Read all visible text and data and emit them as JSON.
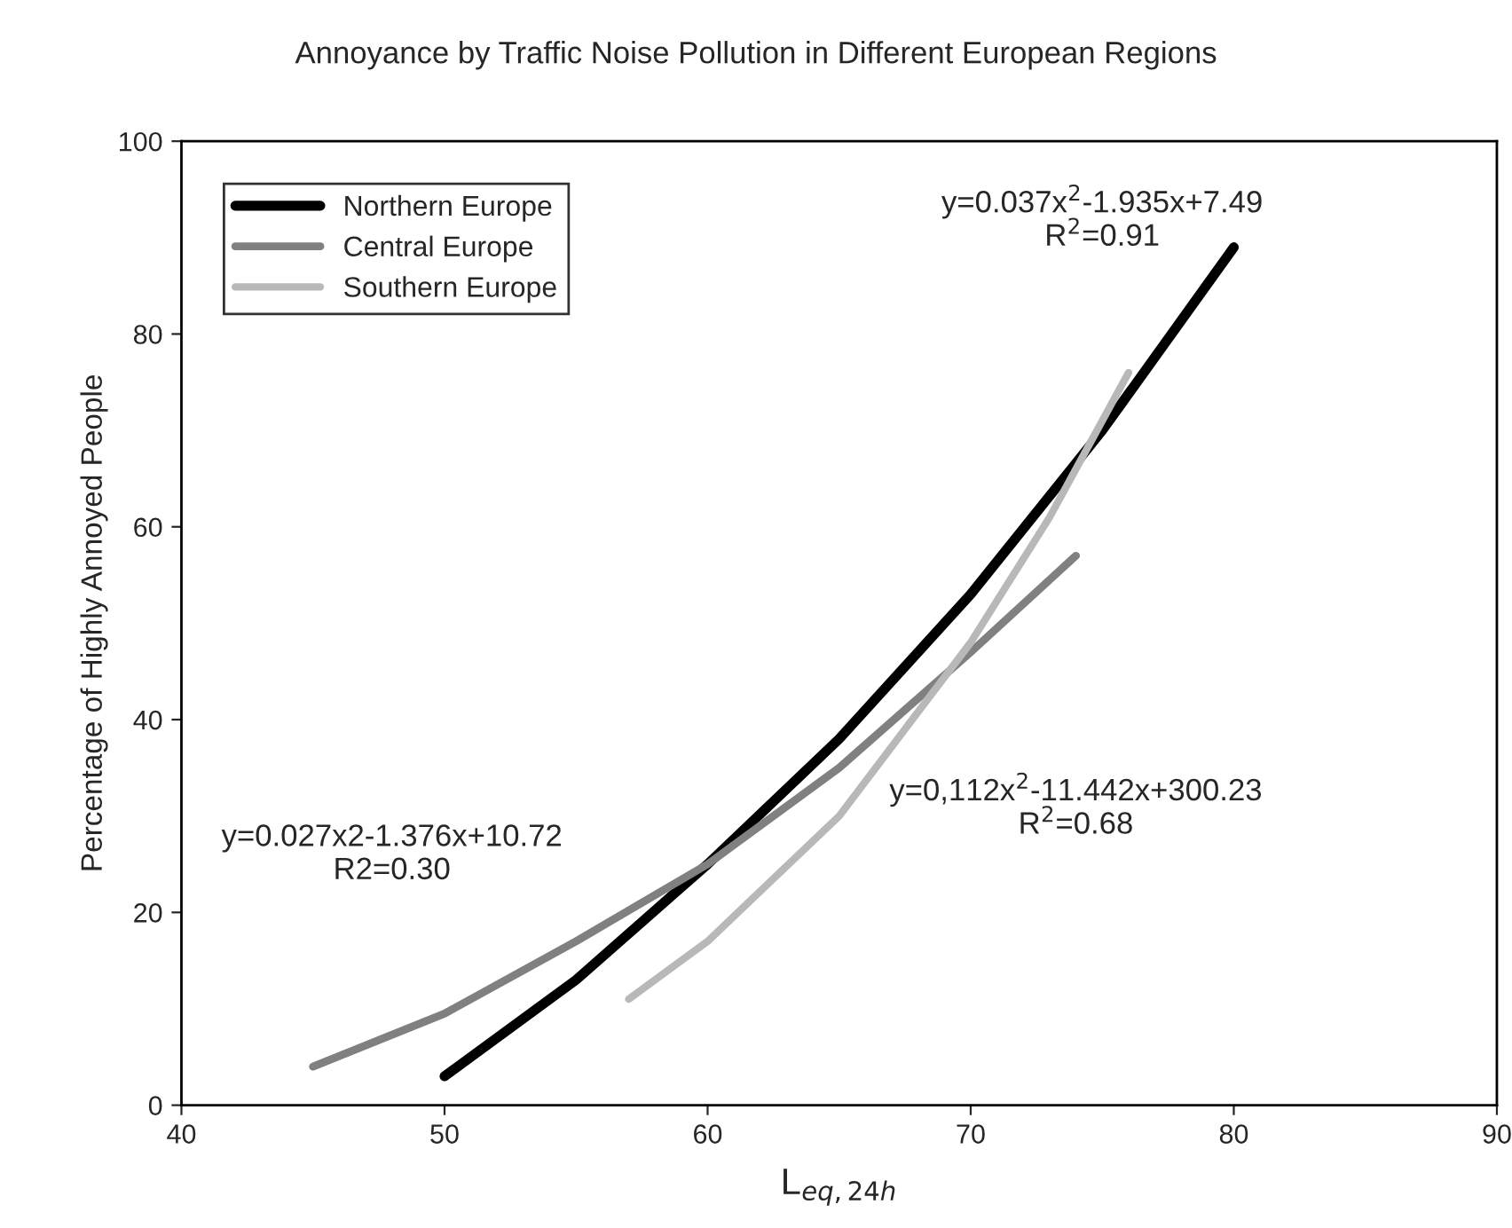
{
  "chart_data": {
    "type": "line",
    "title": "Annoyance by Traffic Noise Pollution in Different European Regions",
    "xlabel": "L$_{eq,24h}$",
    "ylabel": "Percentage of Highly Annoyed People",
    "series": [
      {
        "name": "Northern Europe",
        "color": "#000000",
        "x": [
          50,
          55,
          60,
          65,
          70,
          75,
          80
        ],
        "values": [
          3,
          13,
          25,
          38,
          53,
          70,
          89
        ]
      },
      {
        "name": "Central Europe",
        "color": "#808080",
        "x": [
          45,
          50,
          55,
          60,
          65,
          70,
          74
        ],
        "values": [
          4,
          9.5,
          17,
          25,
          35,
          47,
          57
        ]
      },
      {
        "name": "Southern Europe",
        "color": "#b8b8b8",
        "x": [
          57,
          60,
          65,
          70,
          73,
          76
        ],
        "values": [
          11,
          17,
          30,
          48,
          61,
          76
        ]
      }
    ],
    "annotations": [
      "y=0.037x$^{2}$-1.935x+7.49\nR$^{2}$=0.91",
      "y=0.027x2-1.376x+10.72\nR2=0.30",
      "y=0,112x$^{2}$-11.442x+300.23\nR$^{2}$=0.68"
    ],
    "xlim": [
      40,
      90
    ],
    "xticks": [
      40,
      50,
      60,
      70,
      80,
      90
    ],
    "ylim": [
      0,
      100
    ],
    "yticks": [
      0,
      20,
      40,
      60,
      80,
      100
    ],
    "legend": "top left",
    "grid": false,
    "marker": "none",
    "line_style": "solid"
  }
}
